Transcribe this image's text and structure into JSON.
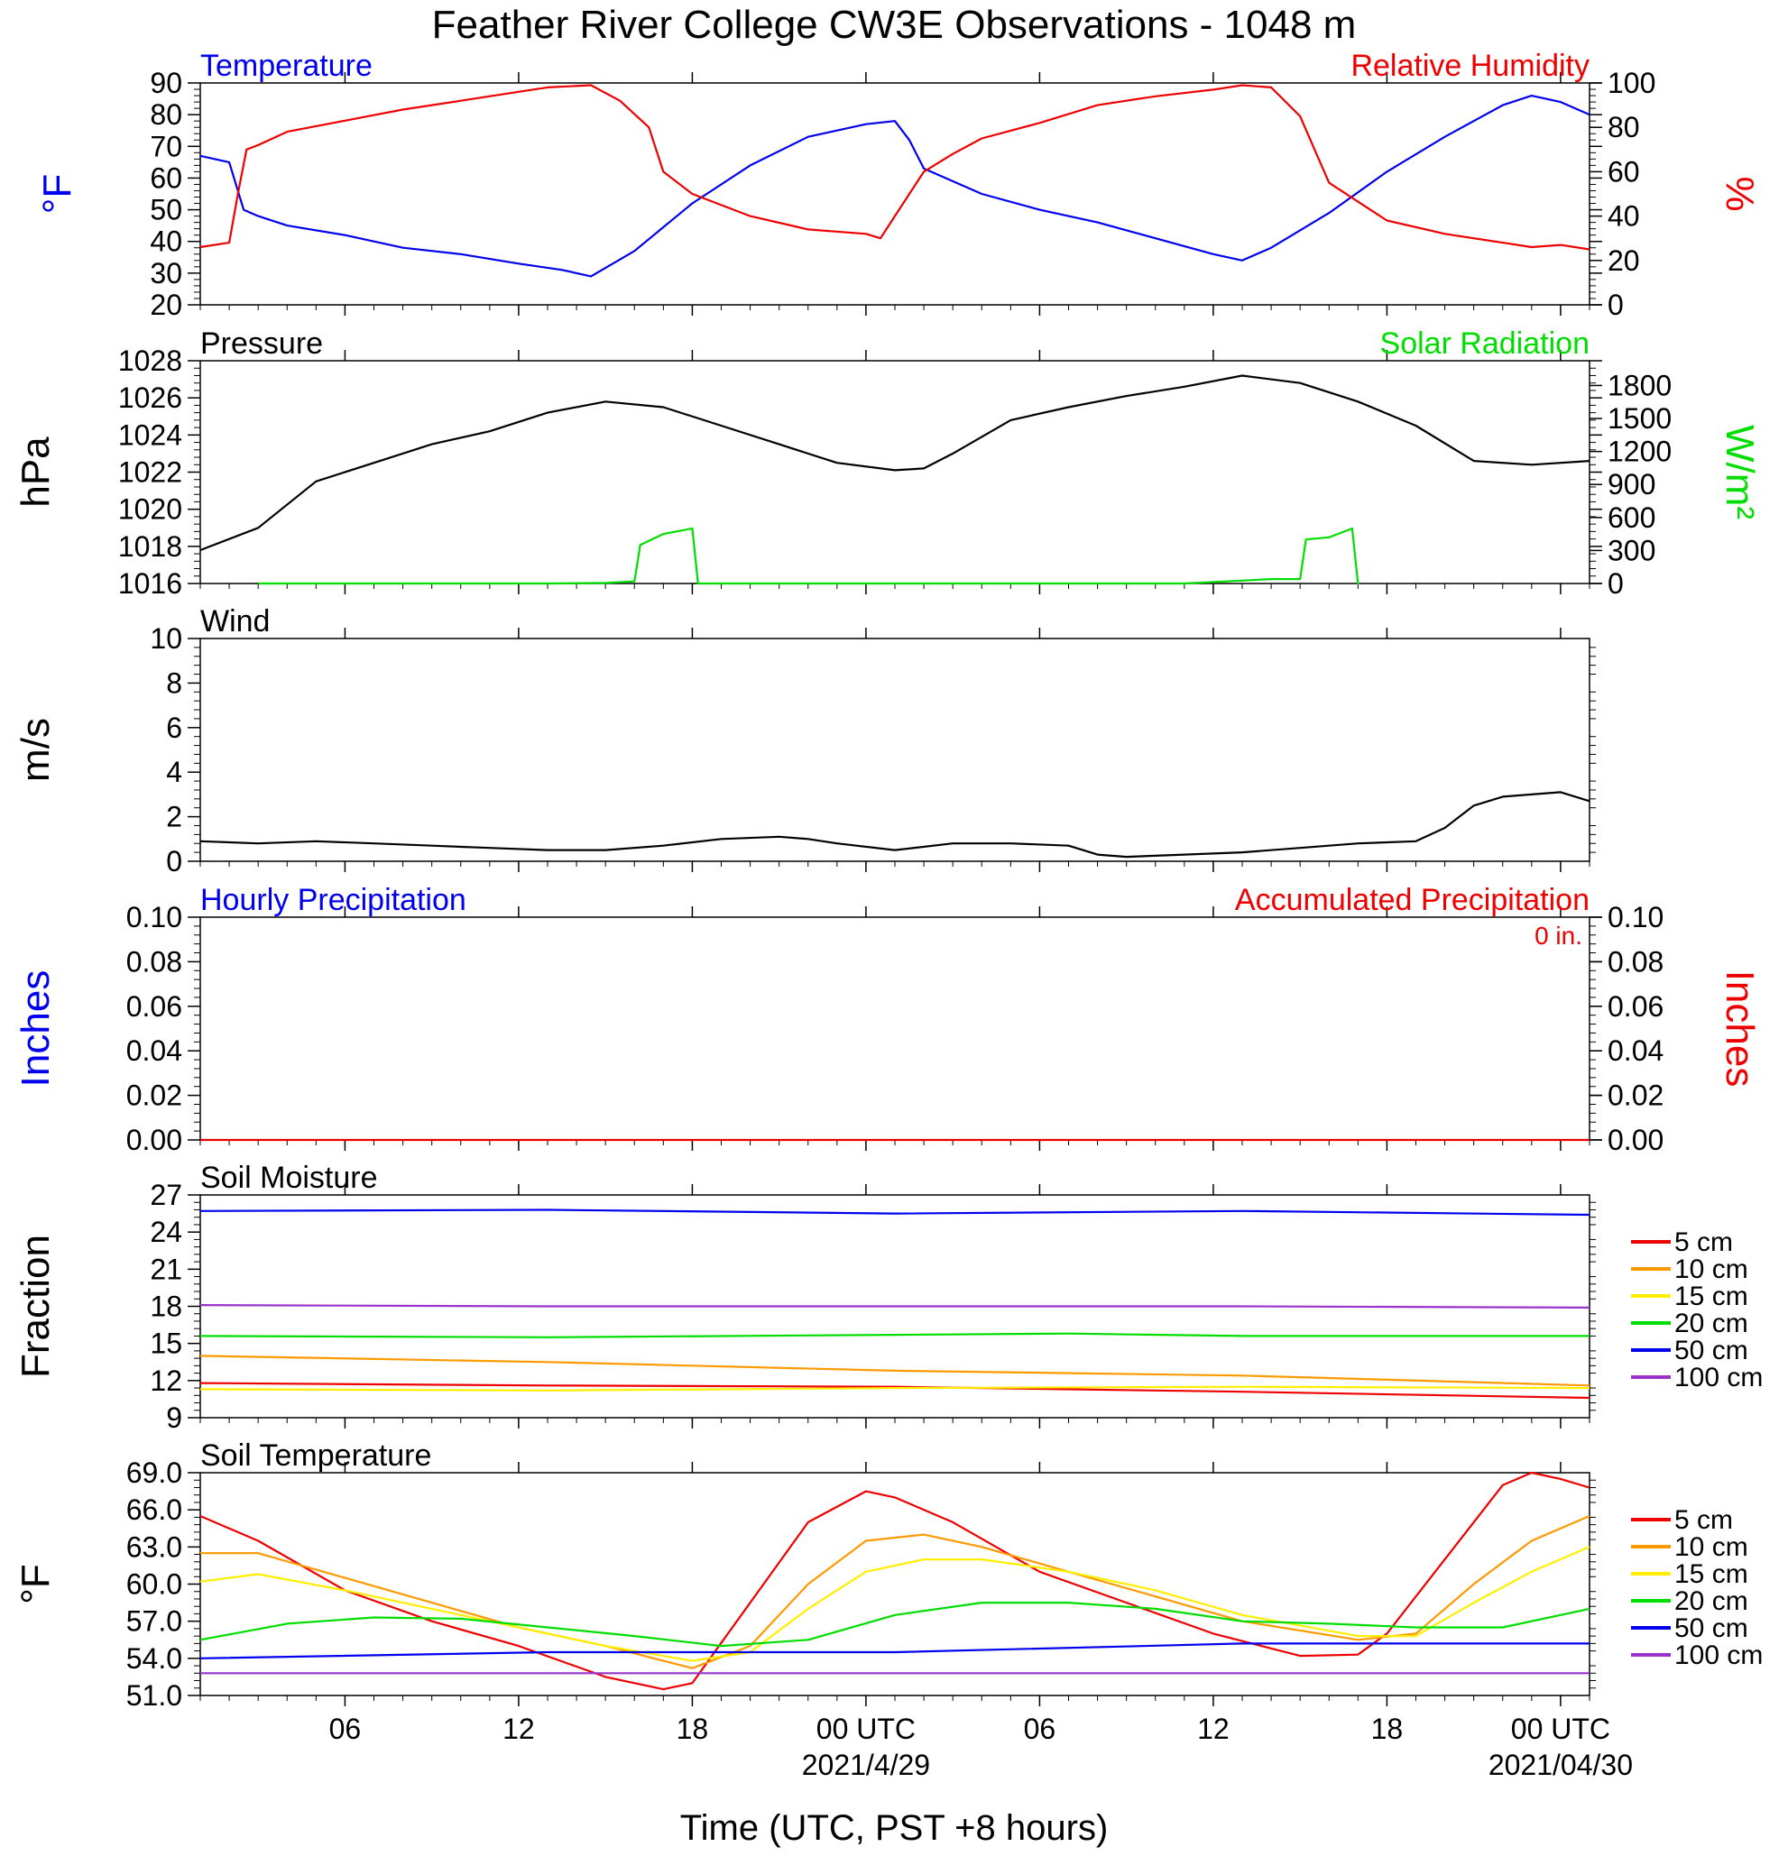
{
  "title": "Feather River College CW3E Observations - 1048 m",
  "colors": {
    "blue": "#0000ee",
    "red": "#ee0000",
    "green": "#00dd00",
    "black": "#000000",
    "orange": "#ff9900",
    "yellow": "#ffee00",
    "purple": "#9933cc"
  },
  "time_axis": {
    "label": "Time (UTC, PST +8 hours)",
    "start_hour": 0,
    "end_hour": 48,
    "ticks": [
      {
        "hour": 5,
        "label": "06"
      },
      {
        "hour": 11,
        "label": "12"
      },
      {
        "hour": 17,
        "label": "18"
      },
      {
        "hour": 23,
        "label": "00 UTC",
        "sub": "2021/4/29"
      },
      {
        "hour": 29,
        "label": "06"
      },
      {
        "hour": 35,
        "label": "12"
      },
      {
        "hour": 41,
        "label": "18"
      },
      {
        "hour": 47,
        "label": "00 UTC",
        "sub": "2021/04/30"
      }
    ]
  },
  "chart_data": [
    {
      "id": "temp-rh",
      "type": "line",
      "title_left": "Temperature",
      "title_right": "Relative Humidity",
      "ylabel_left": "°F",
      "ylabel_right": "%",
      "ylim_left": [
        20,
        90
      ],
      "ylim_right": [
        0,
        100
      ],
      "yticks_left": [
        "20",
        "30",
        "40",
        "50",
        "60",
        "70",
        "80",
        "90"
      ],
      "yticks_right": [
        "0",
        "20",
        "40",
        "60",
        "80",
        "100"
      ],
      "series": [
        {
          "name": "Temperature",
          "axis": "left",
          "color": "blue",
          "x": [
            0,
            1,
            1.5,
            2,
            3,
            5,
            7,
            9,
            11,
            12.5,
            13.5,
            15,
            17,
            19,
            21,
            23,
            24,
            24.5,
            25,
            27,
            29,
            31,
            33,
            35,
            36,
            37,
            39,
            41,
            43,
            45,
            46,
            47,
            48
          ],
          "y": [
            67,
            65,
            50,
            48,
            45,
            42,
            38,
            36,
            33,
            31,
            29,
            37,
            52,
            64,
            73,
            77,
            78,
            72,
            63,
            55,
            50,
            46,
            41,
            36,
            34,
            38,
            49,
            62,
            73,
            83,
            86,
            84,
            80
          ]
        },
        {
          "name": "Relative Humidity",
          "axis": "right",
          "color": "red",
          "x": [
            0,
            1,
            1.3,
            1.6,
            2,
            3,
            5,
            7,
            9,
            11,
            12,
            13.5,
            14.5,
            15.5,
            16,
            17,
            19,
            21,
            23,
            23.5,
            24,
            24.5,
            25,
            26,
            27,
            29,
            31,
            33,
            35,
            36,
            37,
            38,
            38.5,
            39,
            41,
            43,
            45,
            46,
            47,
            48
          ],
          "y": [
            26,
            28,
            50,
            70,
            72,
            78,
            83,
            88,
            92,
            96,
            98,
            99,
            92,
            80,
            60,
            50,
            40,
            34,
            32,
            30,
            40,
            50,
            60,
            68,
            75,
            82,
            90,
            94,
            97,
            99,
            98,
            85,
            70,
            55,
            38,
            32,
            28,
            26,
            27,
            25
          ]
        }
      ]
    },
    {
      "id": "pressure-solar",
      "type": "line",
      "title_left": "Pressure",
      "title_right": "Solar Radiation",
      "ylabel_left": "hPa",
      "ylabel_right": "W/m²",
      "ylim_left": [
        1016,
        1028
      ],
      "ylim_right": [
        0,
        2025
      ],
      "yticks_left": [
        "1016",
        "1018",
        "1020",
        "1022",
        "1024",
        "1026",
        "1028"
      ],
      "yticks_right": [
        "0",
        "300",
        "600",
        "900",
        "1200",
        "1500",
        "1800"
      ],
      "series": [
        {
          "name": "Pressure",
          "axis": "left",
          "color": "black",
          "x": [
            0,
            2,
            4,
            6,
            8,
            10,
            12,
            14,
            16,
            18,
            20,
            22,
            24,
            25,
            26,
            28,
            30,
            32,
            34,
            36,
            38,
            40,
            42,
            44,
            46,
            48
          ],
          "y": [
            1017.8,
            1019,
            1021.5,
            1022.5,
            1023.5,
            1024.2,
            1025.2,
            1025.8,
            1025.5,
            1024.5,
            1023.5,
            1022.5,
            1022.1,
            1022.2,
            1023,
            1024.8,
            1025.5,
            1026.1,
            1026.6,
            1027.2,
            1026.8,
            1025.8,
            1024.5,
            1022.6,
            1022.4,
            1022.6
          ]
        },
        {
          "name": "Solar Radiation",
          "axis": "right",
          "color": "green",
          "x": [
            2,
            12,
            14,
            15,
            15.2,
            16,
            17,
            17.2,
            17.25,
            27,
            34,
            37,
            38,
            38.2,
            39,
            39.8,
            40,
            40.05
          ],
          "y": [
            0,
            0,
            5,
            20,
            350,
            450,
            500,
            0,
            0,
            0,
            0,
            40,
            40,
            400,
            420,
            500,
            0,
            0
          ]
        }
      ]
    },
    {
      "id": "wind",
      "type": "line",
      "title_left": "Wind",
      "ylabel_left": "m/s",
      "ylim_left": [
        0,
        10
      ],
      "yticks_left": [
        "0",
        "2",
        "4",
        "6",
        "8",
        "10"
      ],
      "series": [
        {
          "name": "Wind",
          "axis": "left",
          "color": "black",
          "x": [
            0,
            2,
            4,
            6,
            8,
            10,
            12,
            14,
            16,
            18,
            20,
            21,
            22,
            24,
            26,
            28,
            30,
            31,
            32,
            34,
            36,
            38,
            40,
            42,
            43,
            44,
            45,
            46,
            47,
            48
          ],
          "y": [
            0.9,
            0.8,
            0.9,
            0.8,
            0.7,
            0.6,
            0.5,
            0.5,
            0.7,
            1.0,
            1.1,
            1.0,
            0.8,
            0.5,
            0.8,
            0.8,
            0.7,
            0.3,
            0.2,
            0.3,
            0.4,
            0.6,
            0.8,
            0.9,
            1.5,
            2.5,
            2.9,
            3.0,
            3.1,
            2.7
          ]
        }
      ]
    },
    {
      "id": "precip",
      "type": "line",
      "title_left": "Hourly Precipitation",
      "title_right": "Accumulated Precipitation",
      "annotation": "0 in.",
      "ylabel_left": "Inches",
      "ylabel_right": "Inches",
      "ylim_left": [
        0,
        0.1
      ],
      "ylim_right": [
        0,
        0.1
      ],
      "yticks_left": [
        "0.00",
        "0.02",
        "0.04",
        "0.06",
        "0.08",
        "0.10"
      ],
      "yticks_right": [
        "0.00",
        "0.02",
        "0.04",
        "0.06",
        "0.08",
        "0.10"
      ],
      "series": [
        {
          "name": "Accumulated Precipitation",
          "axis": "right",
          "color": "red",
          "x": [
            0,
            48
          ],
          "y": [
            0,
            0
          ]
        }
      ]
    },
    {
      "id": "soil-moisture",
      "type": "line",
      "title_left": "Soil Moisture",
      "ylabel_left": "Fraction",
      "ylim_left": [
        9,
        27
      ],
      "yticks_left": [
        "9",
        "12",
        "15",
        "18",
        "21",
        "24",
        "27"
      ],
      "legend": [
        "5 cm",
        "10 cm",
        "15 cm",
        "20 cm",
        "50 cm",
        "100 cm"
      ],
      "series": [
        {
          "name": "5 cm",
          "axis": "left",
          "color": "red",
          "x": [
            0,
            12,
            24,
            36,
            48
          ],
          "y": [
            11.8,
            11.6,
            11.5,
            11.1,
            10.6
          ]
        },
        {
          "name": "10 cm",
          "axis": "left",
          "color": "orange",
          "x": [
            0,
            12,
            24,
            36,
            48
          ],
          "y": [
            14.0,
            13.5,
            12.8,
            12.4,
            11.6
          ]
        },
        {
          "name": "15 cm",
          "axis": "left",
          "color": "yellow",
          "x": [
            0,
            12,
            24,
            36,
            48
          ],
          "y": [
            11.3,
            11.2,
            11.4,
            11.5,
            11.4
          ]
        },
        {
          "name": "20 cm",
          "axis": "left",
          "color": "green",
          "x": [
            0,
            12,
            24,
            30,
            36,
            48
          ],
          "y": [
            15.6,
            15.5,
            15.7,
            15.8,
            15.6,
            15.6
          ]
        },
        {
          "name": "50 cm",
          "axis": "left",
          "color": "blue",
          "x": [
            0,
            12,
            24,
            36,
            48
          ],
          "y": [
            25.7,
            25.8,
            25.5,
            25.7,
            25.4
          ]
        },
        {
          "name": "100 cm",
          "axis": "left",
          "color": "purple",
          "x": [
            0,
            12,
            24,
            36,
            48
          ],
          "y": [
            18.1,
            18.0,
            18.0,
            18.0,
            17.9
          ]
        }
      ]
    },
    {
      "id": "soil-temp",
      "type": "line",
      "title_left": "Soil Temperature",
      "ylabel_left": "°F",
      "ylim_left": [
        51,
        69
      ],
      "yticks_left": [
        "51.0",
        "54.0",
        "57.0",
        "60.0",
        "63.0",
        "66.0",
        "69.0"
      ],
      "legend": [
        "5 cm",
        "10 cm",
        "15 cm",
        "20 cm",
        "50 cm",
        "100 cm"
      ],
      "series": [
        {
          "name": "5 cm",
          "axis": "left",
          "color": "red",
          "x": [
            0,
            2,
            5,
            8,
            11,
            14,
            16,
            17,
            19,
            21,
            23,
            24,
            26,
            29,
            32,
            35,
            38,
            40,
            41,
            43,
            45,
            46,
            47,
            48
          ],
          "y": [
            65.5,
            63.5,
            59.5,
            57,
            55,
            52.5,
            51.5,
            52,
            58.5,
            65,
            67.5,
            67,
            65,
            61,
            58.5,
            56,
            54.2,
            54.3,
            56,
            62,
            68,
            69,
            68.5,
            67.8
          ]
        },
        {
          "name": "10 cm",
          "axis": "left",
          "color": "orange",
          "x": [
            0,
            2,
            5,
            8,
            11,
            14,
            17,
            19,
            21,
            23,
            25,
            27,
            30,
            33,
            36,
            40,
            42,
            44,
            46,
            48
          ],
          "y": [
            62.5,
            62.5,
            60.5,
            58.5,
            56.5,
            55,
            53.2,
            55,
            60,
            63.5,
            64,
            63,
            61,
            59,
            57,
            55.5,
            56,
            60,
            63.5,
            65.5
          ]
        },
        {
          "name": "15 cm",
          "axis": "left",
          "color": "yellow",
          "x": [
            0,
            2,
            5,
            8,
            11,
            14,
            17,
            19,
            21,
            23,
            25,
            27,
            30,
            33,
            36,
            40,
            42,
            44,
            46,
            48
          ],
          "y": [
            60.2,
            60.8,
            59.5,
            58,
            56.5,
            55,
            53.8,
            54.5,
            58,
            61,
            62,
            62,
            61,
            59.5,
            57.5,
            55.8,
            55.8,
            58.5,
            61,
            63
          ]
        },
        {
          "name": "20 cm",
          "axis": "left",
          "color": "green",
          "x": [
            0,
            3,
            6,
            9,
            12,
            15,
            18,
            21,
            24,
            27,
            30,
            33,
            36,
            39,
            42,
            45,
            48
          ],
          "y": [
            55.5,
            56.8,
            57.3,
            57.2,
            56.5,
            55.8,
            55,
            55.5,
            57.5,
            58.5,
            58.5,
            58,
            57,
            56.8,
            56.5,
            56.5,
            58
          ]
        },
        {
          "name": "50 cm",
          "axis": "left",
          "color": "blue",
          "x": [
            0,
            12,
            24,
            36,
            48
          ],
          "y": [
            54,
            54.5,
            54.5,
            55.2,
            55.2
          ]
        },
        {
          "name": "100 cm",
          "axis": "left",
          "color": "purple",
          "x": [
            0,
            48
          ],
          "y": [
            52.8,
            52.8
          ]
        }
      ]
    }
  ]
}
